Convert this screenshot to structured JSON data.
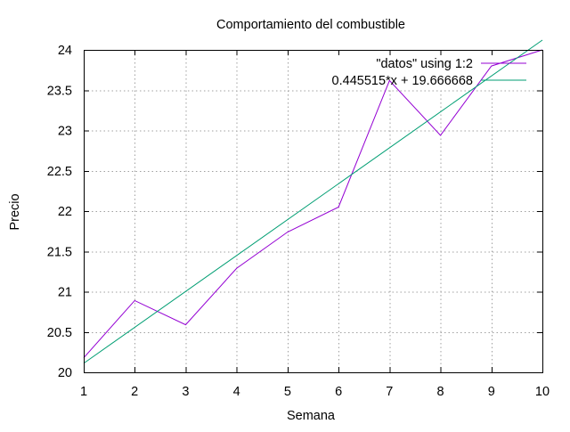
{
  "chart_data": {
    "type": "line",
    "title": "Comportamiento del combustible",
    "xlabel": "Semana",
    "ylabel": "Precio",
    "xlim": [
      1,
      10
    ],
    "ylim": [
      20,
      24
    ],
    "xticks": [
      1,
      2,
      3,
      4,
      5,
      6,
      7,
      8,
      9,
      10
    ],
    "yticks": [
      20,
      20.5,
      21,
      21.5,
      22,
      22.5,
      23,
      23.5,
      24
    ],
    "xtick_labels": [
      "1",
      "2",
      "3",
      "4",
      "5",
      "6",
      "7",
      "8",
      "9",
      "10"
    ],
    "ytick_labels": [
      "20",
      "20.5",
      "21",
      "21.5",
      "22",
      "22.5",
      "23",
      "23.5",
      "24"
    ],
    "grid": true,
    "legend_position": "top-right",
    "series": [
      {
        "name": "\"datos\" using 1:2",
        "color": "#9400d3",
        "x": [
          1,
          2,
          3,
          4,
          5,
          6,
          7,
          8,
          9,
          10
        ],
        "y": [
          20.18,
          20.89,
          20.59,
          21.29,
          21.74,
          22.05,
          23.62,
          22.94,
          23.8,
          24.0
        ]
      },
      {
        "name": "0.445515*x + 19.666668",
        "color": "#009e73",
        "function": {
          "slope": 0.445515,
          "intercept": 19.666668
        },
        "x": [
          1,
          10
        ]
      }
    ]
  }
}
